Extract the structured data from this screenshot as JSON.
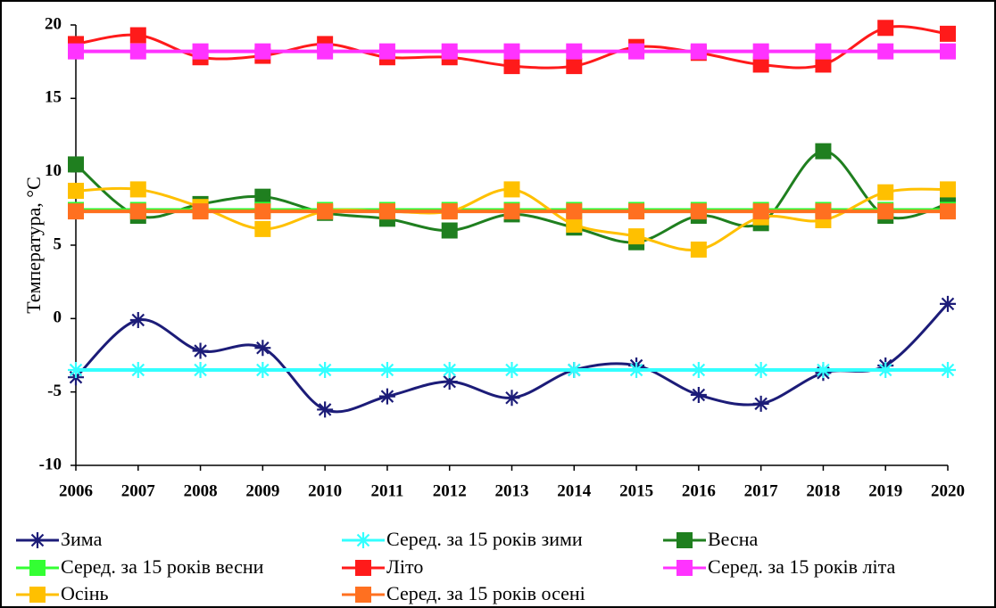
{
  "chart_data": {
    "type": "line",
    "y_label": "Температура, °C",
    "x": [
      2006,
      2007,
      2008,
      2009,
      2010,
      2011,
      2012,
      2013,
      2014,
      2015,
      2016,
      2017,
      2018,
      2019,
      2020
    ],
    "xlim": [
      2006,
      2020
    ],
    "xticks": [
      2006,
      2007,
      2008,
      2009,
      2010,
      2011,
      2012,
      2013,
      2014,
      2015,
      2016,
      2017,
      2018,
      2019,
      2020
    ],
    "ylim": [
      -10,
      20
    ],
    "yticks": [
      -10,
      -5,
      0,
      5,
      10,
      15,
      20
    ],
    "grid": false,
    "legend": "bottom",
    "series": [
      {
        "name": "Зима",
        "color": "#1c1c78",
        "marker": "asterisk",
        "smooth": true,
        "values": [
          -4,
          -0.1,
          -2.2,
          -2,
          -6.2,
          -5.3,
          -4.3,
          -5.4,
          -3.5,
          -3.2,
          -5.2,
          -5.8,
          -3.7,
          -3.2,
          1
        ]
      },
      {
        "name": "Серед. за 15 років зими",
        "color": "#33ffff",
        "marker": "asterisk",
        "smooth": false,
        "values": [
          -3.5,
          -3.5,
          -3.5,
          -3.5,
          -3.5,
          -3.5,
          -3.5,
          -3.5,
          -3.5,
          -3.5,
          -3.5,
          -3.5,
          -3.5,
          -3.5,
          -3.5
        ]
      },
      {
        "name": "Весна",
        "color": "#1f7f1f",
        "marker": "square",
        "smooth": true,
        "values": [
          10.5,
          7,
          7.8,
          8.3,
          7.2,
          6.8,
          6,
          7.1,
          6.2,
          5.2,
          7,
          6.5,
          11.4,
          7,
          7.8
        ]
      },
      {
        "name": "Серед. за 15 років весни",
        "color": "#33ff33",
        "marker": "square",
        "smooth": false,
        "values": [
          7.4,
          7.4,
          7.4,
          7.4,
          7.4,
          7.4,
          7.4,
          7.4,
          7.4,
          7.4,
          7.4,
          7.4,
          7.4,
          7.4,
          7.4
        ]
      },
      {
        "name": "Літо",
        "color": "#ff1a1a",
        "marker": "square",
        "smooth": true,
        "values": [
          18.7,
          19.3,
          17.8,
          17.9,
          18.7,
          17.8,
          17.8,
          17.2,
          17.2,
          18.5,
          18.1,
          17.3,
          17.3,
          19.8,
          19.4
        ]
      },
      {
        "name": "Серед. за 15 років літа",
        "color": "#ff33ff",
        "marker": "square",
        "smooth": false,
        "values": [
          18.2,
          18.2,
          18.2,
          18.2,
          18.2,
          18.2,
          18.2,
          18.2,
          18.2,
          18.2,
          18.2,
          18.2,
          18.2,
          18.2,
          18.2
        ]
      },
      {
        "name": "Осінь",
        "color": "#ffc000",
        "marker": "square",
        "smooth": true,
        "values": [
          8.7,
          8.8,
          7.6,
          6.1,
          7.3,
          7.3,
          7.3,
          8.8,
          6.4,
          5.6,
          4.7,
          6.9,
          6.7,
          8.6,
          8.8
        ]
      },
      {
        "name": "Серед. за 15 років осені",
        "color": "#ff7020",
        "marker": "square",
        "smooth": false,
        "values": [
          7.3,
          7.3,
          7.3,
          7.3,
          7.3,
          7.3,
          7.3,
          7.3,
          7.3,
          7.3,
          7.3,
          7.3,
          7.3,
          7.3,
          7.3
        ]
      }
    ]
  }
}
